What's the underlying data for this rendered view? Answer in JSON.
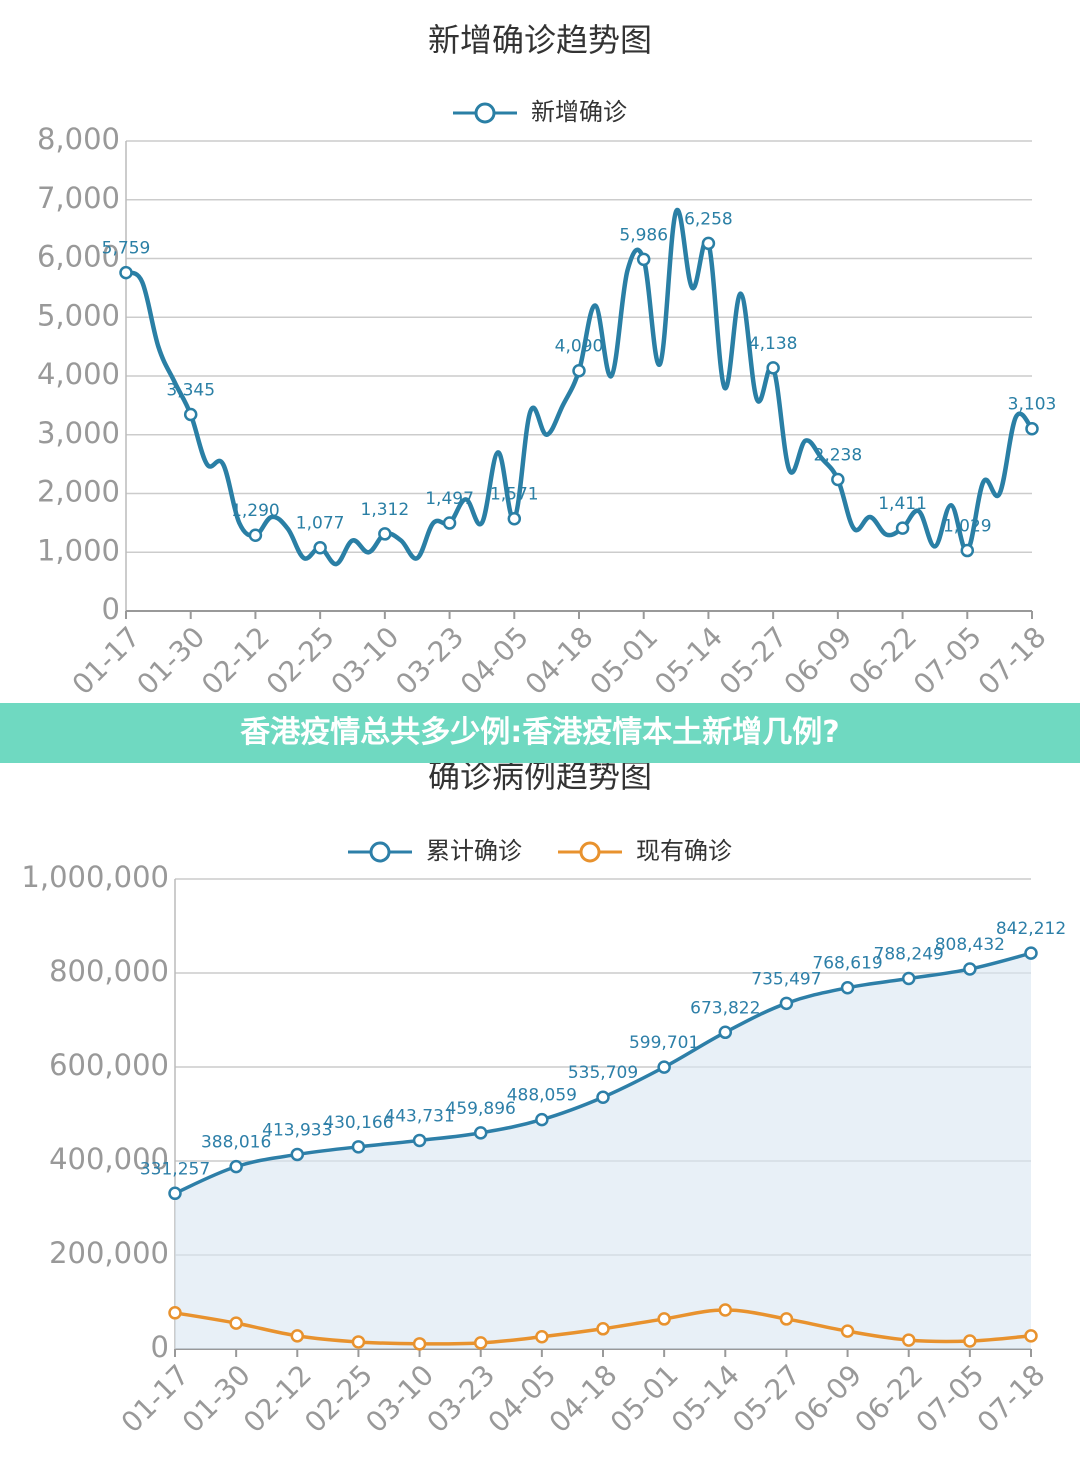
{
  "banner": "香港疫情总共多少例:香港疫情本土新增几例?",
  "chart_data": [
    {
      "type": "line",
      "title": "新增确诊趋势图",
      "categories": [
        "01-17",
        null,
        null,
        null,
        "01-30",
        null,
        null,
        null,
        "02-12",
        null,
        null,
        null,
        "02-25",
        null,
        null,
        null,
        "03-10",
        null,
        null,
        null,
        "03-23",
        null,
        null,
        null,
        "04-05",
        null,
        null,
        null,
        "04-18",
        null,
        null,
        null,
        "05-01",
        null,
        null,
        null,
        "05-14",
        null,
        null,
        null,
        "05-27",
        null,
        null,
        null,
        "06-09",
        null,
        null,
        null,
        "06-22",
        null,
        null,
        null,
        "07-05",
        null,
        null,
        null,
        "07-18"
      ],
      "series": [
        {
          "name": "新增确诊",
          "color": "#2a7fa5",
          "values": [
            5759,
            5600,
            4500,
            3900,
            3345,
            2500,
            2500,
            1500,
            1290,
            1600,
            1400,
            900,
            1077,
            800,
            1200,
            1000,
            1312,
            1200,
            900,
            1500,
            1497,
            1900,
            1500,
            2700,
            1571,
            3400,
            3000,
            3500,
            4090,
            5200,
            4000,
            5800,
            5986,
            4200,
            6800,
            5500,
            6258,
            3800,
            5400,
            3600,
            4138,
            2400,
            2900,
            2600,
            2238,
            1400,
            1600,
            1300,
            1411,
            1700,
            1100,
            1800,
            1029,
            2200,
            2000,
            3300,
            3103
          ],
          "value_labels": [
            "5,759",
            null,
            null,
            null,
            "3,345",
            null,
            null,
            null,
            "1,290",
            null,
            null,
            null,
            "1,077",
            null,
            null,
            null,
            "1,312",
            null,
            null,
            null,
            "1,497",
            null,
            null,
            null,
            "1,571",
            null,
            null,
            null,
            "4,090",
            null,
            null,
            null,
            "5,986",
            null,
            null,
            null,
            "6,258",
            null,
            null,
            null,
            "4,138",
            null,
            null,
            null,
            "2,238",
            null,
            null,
            null,
            "1,411",
            null,
            null,
            null,
            "1,029",
            null,
            null,
            null,
            "3,103"
          ]
        }
      ],
      "ylim": [
        0,
        8000
      ],
      "yticks": [
        0,
        {
          "value": 1000,
          "label": "1,000"
        },
        {
          "value": 2000,
          "label": "2,000"
        },
        {
          "value": 3000,
          "label": "3,000"
        },
        {
          "value": 4000,
          "label": "4,000"
        },
        {
          "value": 5000,
          "label": "5,000"
        },
        {
          "value": 6000,
          "label": "6,000"
        },
        {
          "value": 7000,
          "label": "7,000"
        },
        {
          "value": 8000,
          "label": "8,000"
        }
      ],
      "grid": true,
      "legend": "top"
    },
    {
      "type": "line",
      "title": "确诊病例趋势图",
      "categories": [
        "01-17",
        "01-30",
        "02-12",
        "02-25",
        "03-10",
        "03-23",
        "04-05",
        "04-18",
        "05-01",
        "05-14",
        "05-27",
        "06-09",
        "06-22",
        "07-05",
        "07-18"
      ],
      "series": [
        {
          "name": "累计确诊",
          "color": "#2d7fa8",
          "area": true,
          "values": [
            331257,
            388016,
            413933,
            430166,
            443731,
            459896,
            488059,
            535709,
            599701,
            673822,
            735497,
            768619,
            788249,
            808432,
            842212
          ],
          "value_labels": [
            "331,257",
            "388,016",
            "413,933",
            "430,166",
            "443,731",
            "459,896",
            "488,059",
            "535,709",
            "599,701",
            "673,822",
            "735,497",
            "768,619",
            "788,249",
            "808,432",
            "842,212"
          ]
        },
        {
          "name": "现有确诊",
          "color": "#e8922e",
          "values": [
            77000,
            55000,
            28000,
            15000,
            11000,
            13000,
            26000,
            43000,
            64000,
            83000,
            64000,
            38000,
            19000,
            17000,
            28000
          ]
        }
      ],
      "ylim": [
        0,
        1000000
      ],
      "yticks": [
        0,
        {
          "value": 200000,
          "label": "200,000"
        },
        {
          "value": 400000,
          "label": "400,000"
        },
        {
          "value": 600000,
          "label": "600,000"
        },
        {
          "value": 800000,
          "label": "800,000"
        },
        {
          "value": 1000000,
          "label": "1,000,000"
        }
      ],
      "grid": true,
      "legend": "top"
    }
  ]
}
